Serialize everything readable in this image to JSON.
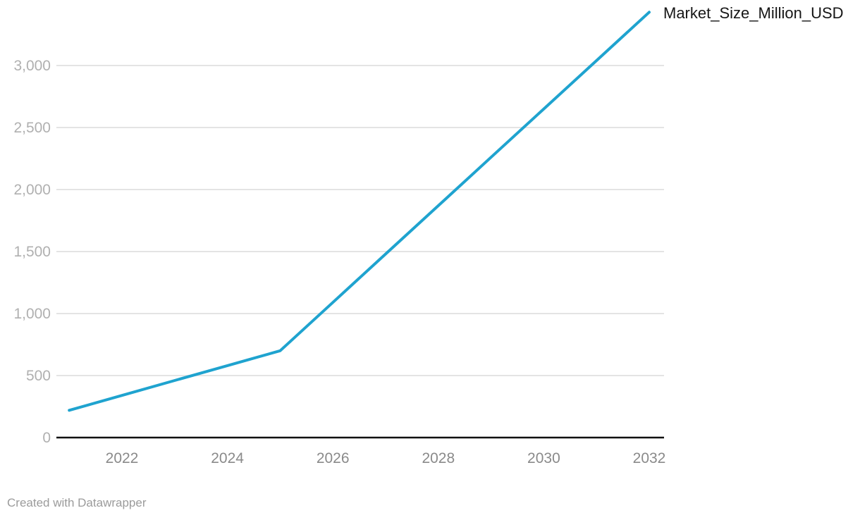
{
  "chart_data": {
    "type": "line",
    "title": "",
    "x": [
      2021,
      2022,
      2023,
      2024,
      2025,
      2026,
      2027,
      2028,
      2029,
      2030,
      2031,
      2032
    ],
    "series": [
      {
        "name": "Market_Size_Million_USD",
        "color": "#1fa3cf",
        "values": [
          220,
          340,
          460,
          580,
          700,
          1090,
          1480,
          1870,
          2260,
          2650,
          3040,
          3430
        ]
      }
    ],
    "x_ticks": [
      {
        "value": 2022,
        "label": "2022"
      },
      {
        "value": 2024,
        "label": "2024"
      },
      {
        "value": 2026,
        "label": "2026"
      },
      {
        "value": 2028,
        "label": "2028"
      },
      {
        "value": 2030,
        "label": "2030"
      },
      {
        "value": 2032,
        "label": "2032"
      }
    ],
    "y_ticks": [
      {
        "value": 0,
        "label": "0"
      },
      {
        "value": 500,
        "label": "500"
      },
      {
        "value": 1000,
        "label": "1,000"
      },
      {
        "value": 1500,
        "label": "1,500"
      },
      {
        "value": 2000,
        "label": "2,000"
      },
      {
        "value": 2500,
        "label": "2,500"
      },
      {
        "value": 3000,
        "label": "3,000"
      }
    ],
    "xlim": [
      2020.8,
      2032.3
    ],
    "ylim": [
      0,
      3430
    ],
    "grid": "horizontal",
    "legend_position": "line-end-right",
    "theme": {
      "grid_color": "#e4e4e4",
      "axis_color": "#111111",
      "y_tick_color": "#b0b0b0",
      "x_tick_color": "#8a8a8a",
      "label_color": "#161616"
    }
  },
  "footer": {
    "credit": "Created with Datawrapper"
  }
}
